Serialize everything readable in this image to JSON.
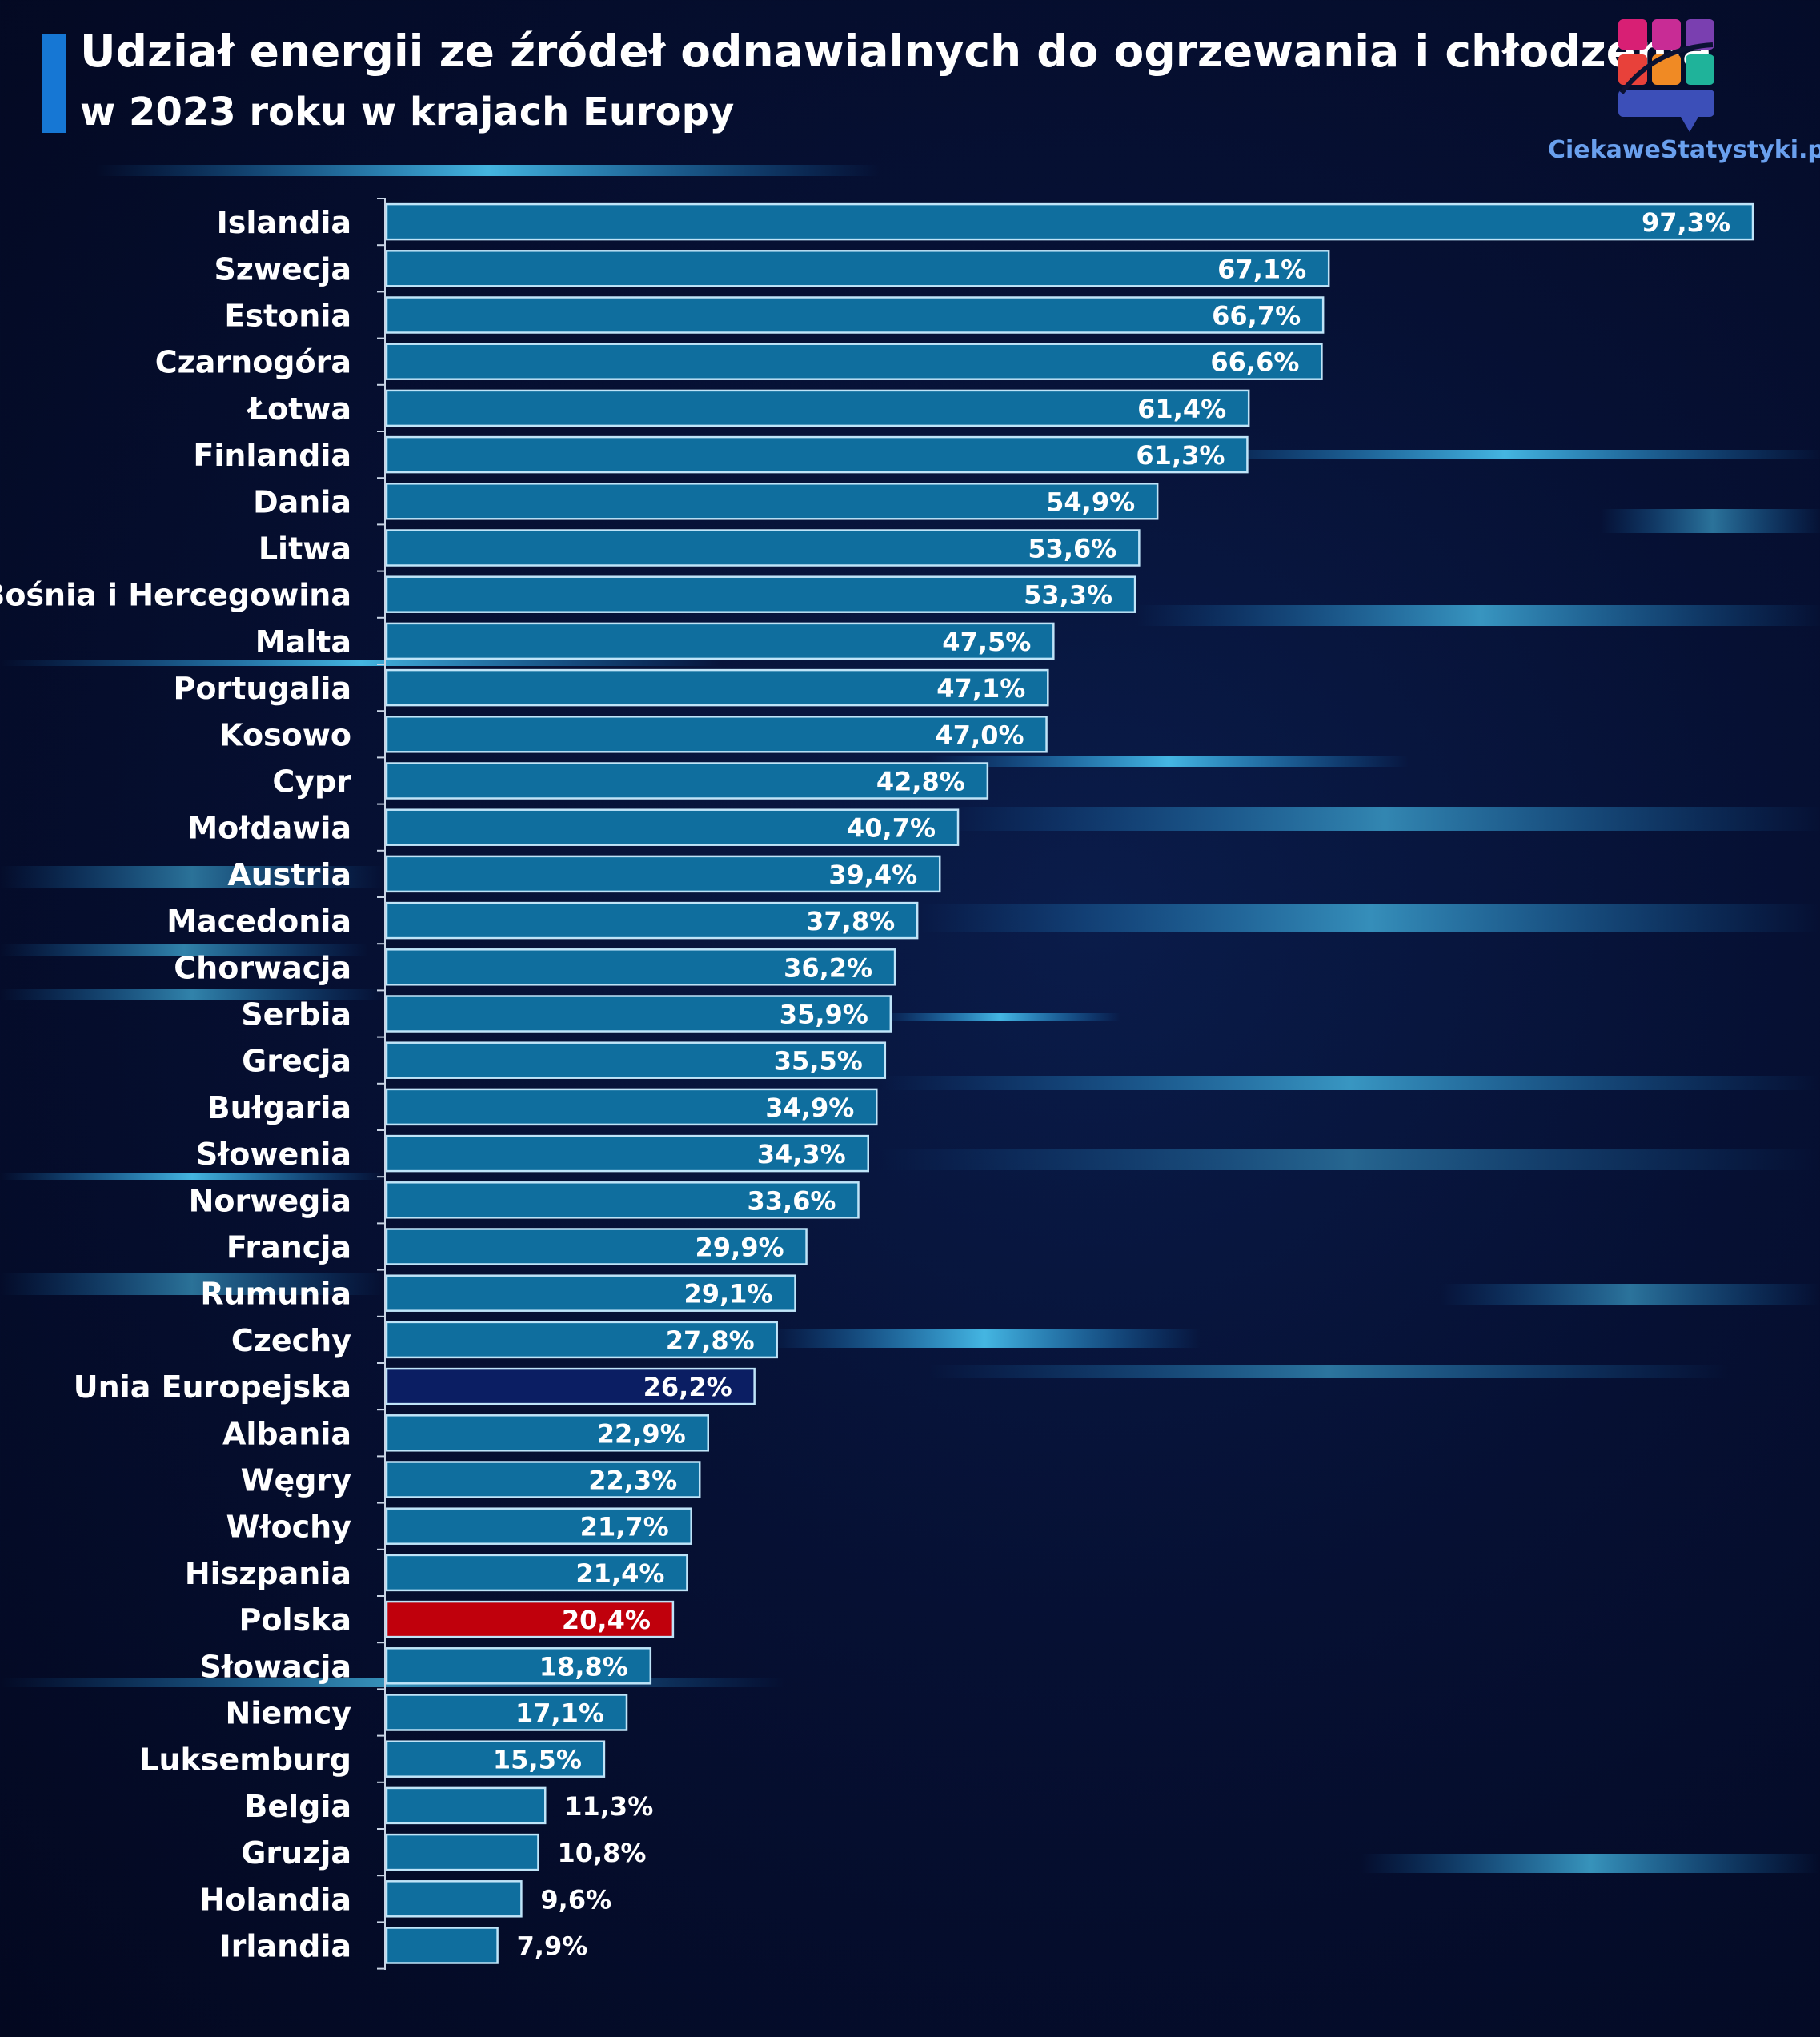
{
  "header": {
    "title": "Udział energii ze źródeł odnawialnych do ogrzewania i chłodzenia",
    "subtitle": "w 2023 roku w krajach Europy"
  },
  "brand": {
    "name": "CiekaweStatystyki.pl"
  },
  "colors": {
    "bar": "#0f6e9e",
    "bar_border": "#bfe4f8",
    "highlight_poland": "#c0000c",
    "highlight_eu": "#0b1e63",
    "label": "#ffffff",
    "accent": "#1677d4"
  },
  "chart_data": {
    "type": "bar",
    "orientation": "horizontal",
    "title": "Udział energii ze źródeł odnawialnych do ogrzewania i chłodzenia",
    "subtitle": "w 2023 roku w krajach Europy",
    "xlabel": "",
    "ylabel": "",
    "xlim": [
      0,
      100
    ],
    "grid": false,
    "legend": "none",
    "categories": [
      "Islandia",
      "Szwecja",
      "Estonia",
      "Czarnogóra",
      "Łotwa",
      "Finlandia",
      "Dania",
      "Litwa",
      "Bośnia i Hercegowina",
      "Malta",
      "Portugalia",
      "Kosowo",
      "Cypr",
      "Mołdawia",
      "Austria",
      "Macedonia",
      "Chorwacja",
      "Serbia",
      "Grecja",
      "Bułgaria",
      "Słowenia",
      "Norwegia",
      "Francja",
      "Rumunia",
      "Czechy",
      "Unia Europejska",
      "Albania",
      "Węgry",
      "Włochy",
      "Hiszpania",
      "Polska",
      "Słowacja",
      "Niemcy",
      "Luksemburg",
      "Belgia",
      "Gruzja",
      "Holandia",
      "Irlandia"
    ],
    "values": [
      97.3,
      67.1,
      66.7,
      66.6,
      61.4,
      61.3,
      54.9,
      53.6,
      53.3,
      47.5,
      47.1,
      47.0,
      42.8,
      40.7,
      39.4,
      37.8,
      36.2,
      35.9,
      35.5,
      34.9,
      34.3,
      33.6,
      29.9,
      29.1,
      27.8,
      26.2,
      22.9,
      22.3,
      21.7,
      21.4,
      20.4,
      18.8,
      17.1,
      15.5,
      11.3,
      10.8,
      9.6,
      7.9
    ],
    "value_labels": [
      "97,3%",
      "67,1%",
      "66,7%",
      "66,6%",
      "61,4%",
      "61,3%",
      "54,9%",
      "53,6%",
      "53,3%",
      "47,5%",
      "47,1%",
      "47,0%",
      "42,8%",
      "40,7%",
      "39,4%",
      "37,8%",
      "36,2%",
      "35,9%",
      "35,5%",
      "34,9%",
      "34,3%",
      "33,6%",
      "29,9%",
      "29,1%",
      "27,8%",
      "26,2%",
      "22,9%",
      "22,3%",
      "21,7%",
      "21,4%",
      "20,4%",
      "18,8%",
      "17,1%",
      "15,5%",
      "11,3%",
      "10,8%",
      "9,6%",
      "7,9%"
    ],
    "highlight": {
      "Polska": "#c0000c",
      "Unia Europejska": "#0b1e63"
    }
  }
}
